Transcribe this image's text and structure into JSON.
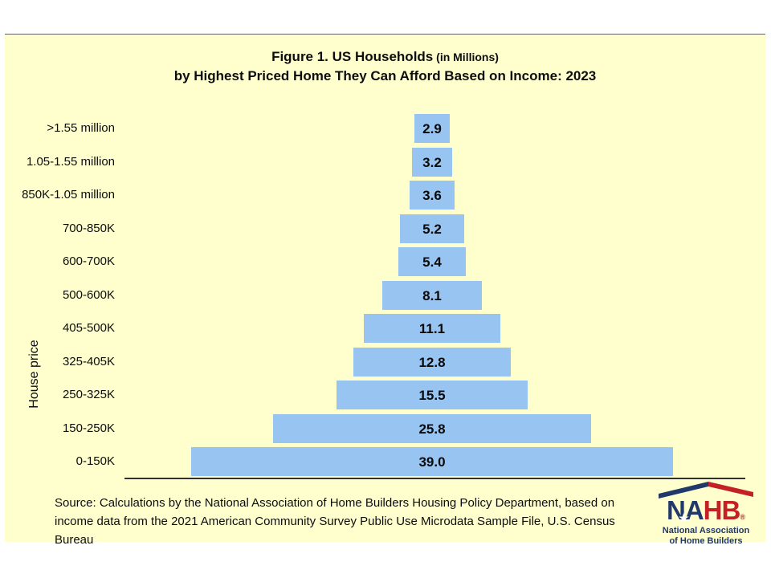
{
  "title": {
    "line1_main": "Figure 1. US Households",
    "line1_small": " (in Millions)",
    "line2": "by Highest Priced Home They Can Afford Based on Income: 2023"
  },
  "chart_data": {
    "type": "bar",
    "style": "centered-pyramid-horizontal",
    "title": "Figure 1. US Households (in Millions) by Highest Priced Home They Can Afford Based on Income: 2023",
    "ylabel": "House price",
    "xlabel": "",
    "categories": [
      ">1.55 million",
      "1.05-1.55 million",
      "850K-1.05 million",
      "700-850K",
      "600-700K",
      "500-600K",
      "405-500K",
      "325-405K",
      "250-325K",
      "150-250K",
      "0-150K"
    ],
    "values": [
      2.9,
      3.2,
      3.6,
      5.2,
      5.4,
      8.1,
      11.1,
      12.8,
      15.5,
      25.8,
      39.0
    ],
    "value_axis_max": 39.0,
    "grid": false,
    "legend": false,
    "bar_color": "#97C4F1",
    "background_color": "#FFFFCE",
    "value_labels_shown": true
  },
  "footer": {
    "source": "Source: Calculations by the National Association of Home Builders Housing Policy Department, based on income data from the 2021 American Community Survey Public Use Microdata Sample File, U.S. Census Bureau"
  },
  "logo": {
    "acronym_left": "NA",
    "acronym_right": "HB",
    "registered": "®",
    "star": "★",
    "caption_line1": "National Association",
    "caption_line2": "of Home Builders",
    "navy": "#21386B",
    "red": "#C42127"
  }
}
